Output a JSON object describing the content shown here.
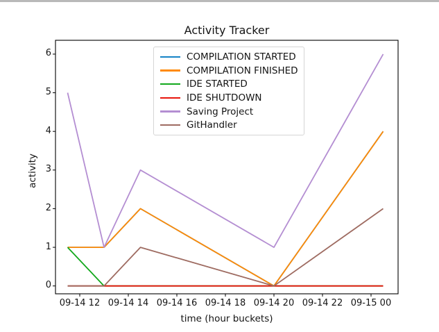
{
  "window": {
    "top_border_color": "#b9b9b9",
    "background_color": "#ffffff"
  },
  "chart_data": {
    "type": "line",
    "title": "Activity Tracker",
    "xlabel": "time (hour buckets)",
    "ylabel": "activity",
    "grid": false,
    "legend_position": "upper center, inside axes",
    "x_hours_since_09-14_00:00": [
      11.5,
      13,
      14.5,
      20,
      24.5
    ],
    "x_point_times": [
      "09-14 11:30",
      "09-14 13:00",
      "09-14 14:30",
      "09-14 20:00",
      "09-15 00:30"
    ],
    "series": [
      {
        "name": "COMPILATION STARTED",
        "color": "#1483c6",
        "values": [
          1,
          1,
          2,
          0,
          4
        ]
      },
      {
        "name": "COMPILATION FINISHED",
        "color": "#ff8a05",
        "values": [
          1,
          1,
          2,
          0,
          4
        ]
      },
      {
        "name": "IDE STARTED",
        "color": "#12a81c",
        "values": [
          1,
          0,
          0,
          0,
          0
        ]
      },
      {
        "name": "IDE SHUTDOWN",
        "color": "#e8150c",
        "values": [
          0,
          0,
          0,
          0,
          0
        ]
      },
      {
        "name": "Saving Project",
        "color": "#b48ed2",
        "values": [
          5,
          1,
          3,
          1,
          6
        ]
      },
      {
        "name": "GitHandler",
        "color": "#9e6b61",
        "values": [
          0,
          0,
          1,
          0,
          2
        ]
      }
    ],
    "xticks": {
      "hours": [
        12,
        14,
        16,
        18,
        20,
        22,
        24
      ],
      "labels": [
        "09-14 12",
        "09-14 14",
        "09-14 16",
        "09-14 18",
        "09-14 20",
        "09-14 22",
        "09-15 00"
      ]
    },
    "yticks": [
      0,
      1,
      2,
      3,
      4,
      5,
      6
    ],
    "ylim": [
      -0.2,
      6.35
    ],
    "xlim_hours": [
      11.0,
      25.1
    ],
    "axis_color": "#000000"
  }
}
